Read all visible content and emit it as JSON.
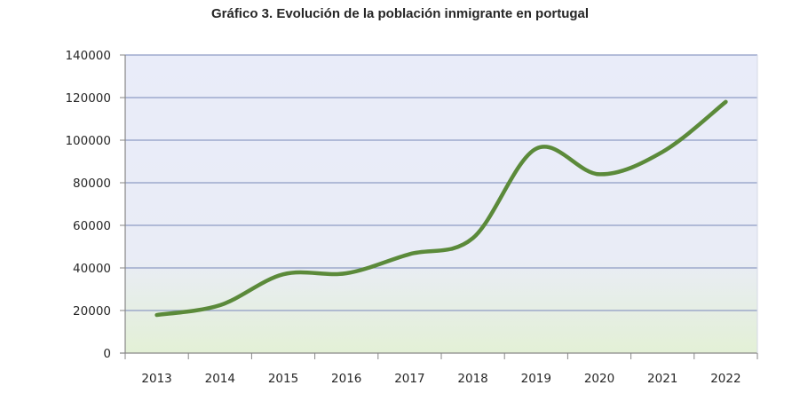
{
  "chart_data": {
    "type": "line",
    "title": "Gráfico 3. Evolución de la población inmigrante en portugal",
    "xlabel": "",
    "ylabel": "",
    "categories": [
      "2013",
      "2014",
      "2015",
      "2016",
      "2017",
      "2018",
      "2019",
      "2020",
      "2021",
      "2022"
    ],
    "series": [
      {
        "name": "Población inmigrante",
        "values": [
          17900,
          22500,
          37000,
          37500,
          46500,
          54000,
          96000,
          84000,
          94500,
          118000
        ],
        "color": "#5B8A3A"
      }
    ],
    "ylim": [
      0,
      140000
    ],
    "yticks": [
      0,
      20000,
      40000,
      60000,
      80000,
      100000,
      120000,
      140000
    ],
    "grid": true,
    "legend": "none",
    "colors": {
      "gridline": "#8E9BC4",
      "background_top": "#E9ECF9",
      "background_bottom": "#E3F0D6",
      "axis": "#868686"
    }
  }
}
